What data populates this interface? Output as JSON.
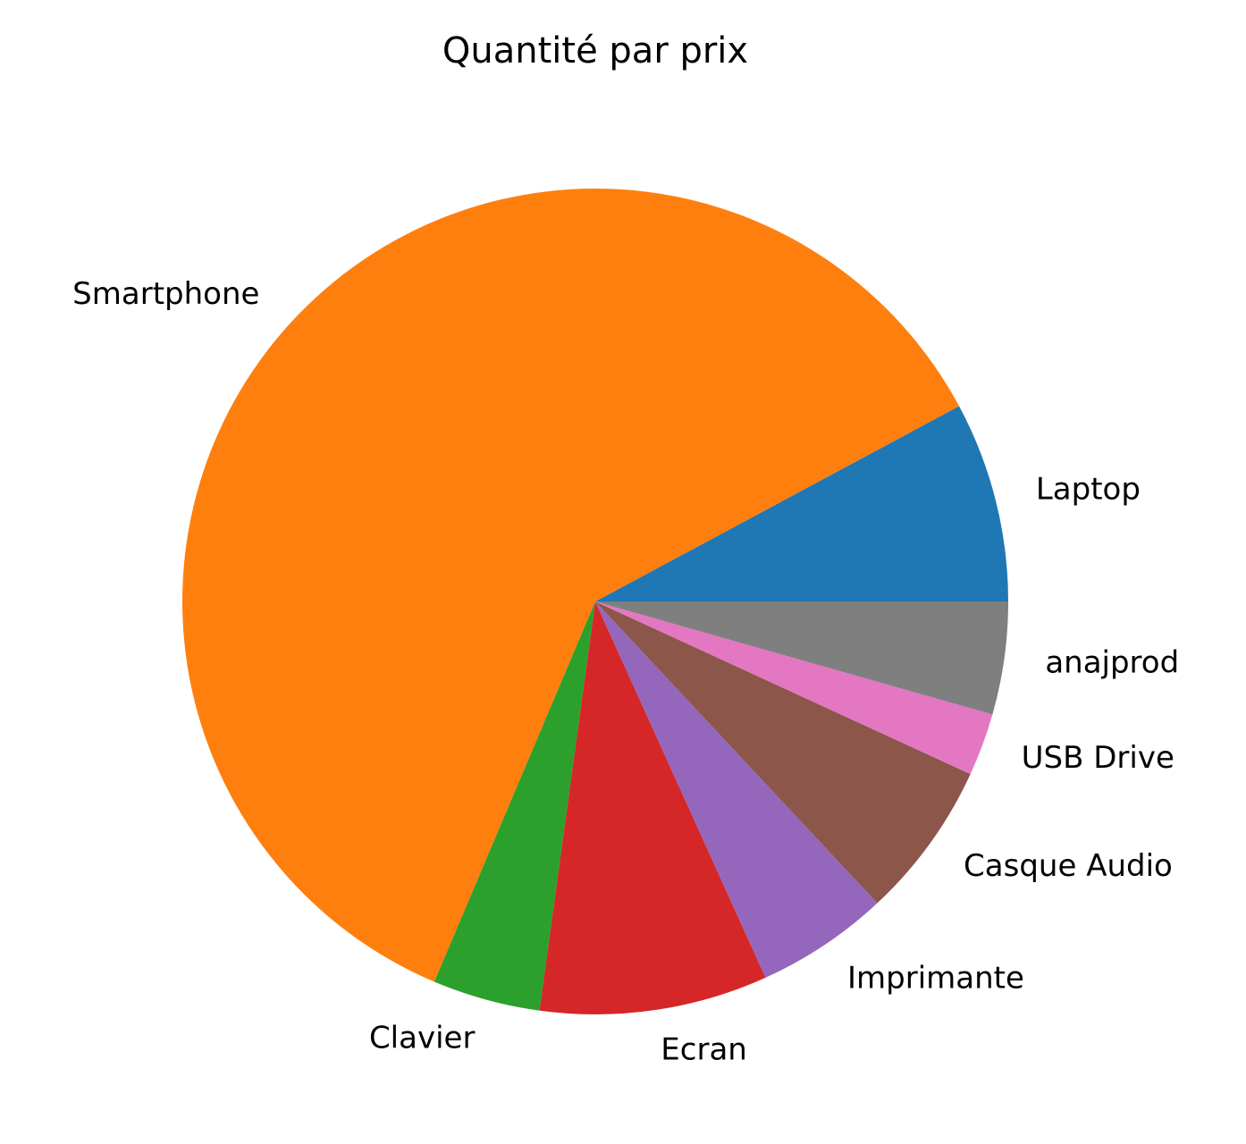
{
  "chart_data": {
    "type": "pie",
    "title": "Quantité par prix",
    "start_angle_deg": 0,
    "direction": "counterclockwise",
    "slices": [
      {
        "label": "Laptop",
        "value": 8.0,
        "color": "#1f77b4"
      },
      {
        "label": "Smartphone",
        "value": 62.0,
        "color": "#ff7f0e"
      },
      {
        "label": "Clavier",
        "value": 4.3,
        "color": "#2ca02c"
      },
      {
        "label": "Ecran",
        "value": 9.1,
        "color": "#d62728"
      },
      {
        "label": "Imprimante",
        "value": 5.3,
        "color": "#9467bd"
      },
      {
        "label": "Casque Audio",
        "value": 6.3,
        "color": "#8c564b"
      },
      {
        "label": "USB Drive",
        "value": 2.5,
        "color": "#e377c2"
      },
      {
        "label": "anajprod",
        "value": 4.5,
        "color": "#7f7f7f"
      }
    ]
  }
}
